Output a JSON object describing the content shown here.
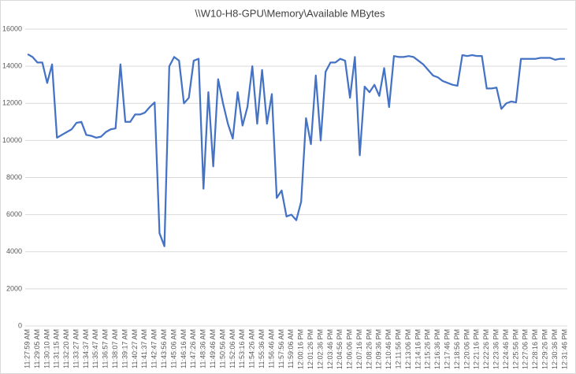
{
  "chart_data": {
    "type": "line",
    "title": "\\\\W10-H8-GPU\\Memory\\Available MBytes",
    "categories": [
      "11:27:59 AM",
      null,
      "11:29:05 AM",
      null,
      "11:30:10 AM",
      null,
      "11:31:15 AM",
      null,
      "11:32:20 AM",
      null,
      "11:33:27 AM",
      null,
      "11:34:37 AM",
      null,
      "11:35:47 AM",
      null,
      "11:36:57 AM",
      null,
      "11:38:07 AM",
      null,
      "11:39:17 AM",
      null,
      "11:40:27 AM",
      null,
      "11:41:37 AM",
      null,
      "11:42:47 AM",
      null,
      "11:43:56 AM",
      null,
      "11:45:06 AM",
      null,
      "11:46:16 AM",
      null,
      "11:47:26 AM",
      null,
      "11:48:36 AM",
      null,
      "11:49:46 AM",
      null,
      "11:50:56 AM",
      null,
      "11:52:06 AM",
      null,
      "11:53:16 AM",
      null,
      "11:54:26 AM",
      null,
      "11:55:36 AM",
      null,
      "11:56:46 AM",
      null,
      "11:57:56 AM",
      null,
      "11:59:06 AM",
      null,
      "12:00:16 PM",
      null,
      "12:01:26 PM",
      null,
      "12:02:36 PM",
      null,
      "12:03:46 PM",
      null,
      "12:04:56 PM",
      null,
      "12:06:06 PM",
      null,
      "12:07:16 PM",
      null,
      "12:08:26 PM",
      null,
      "12:09:36 PM",
      null,
      "12:10:46 PM",
      null,
      "12:11:56 PM",
      null,
      "12:13:06 PM",
      null,
      "12:14:16 PM",
      null,
      "12:15:26 PM",
      null,
      "12:16:36 PM",
      null,
      "12:17:46 PM",
      null,
      "12:18:56 PM",
      null,
      "12:20:06 PM",
      null,
      "12:21:16 PM",
      null,
      "12:22:26 PM",
      null,
      "12:23:36 PM",
      null,
      "12:24:46 PM",
      null,
      "12:25:56 PM",
      null,
      "12:27:06 PM",
      null,
      "12:28:16 PM",
      null,
      "12:29:26 PM",
      null,
      "12:30:36 PM",
      null,
      "12:31:46 PM"
    ],
    "values": [
      14650,
      14500,
      14200,
      14200,
      13100,
      14100,
      10150,
      10300,
      10450,
      10600,
      10950,
      11000,
      10300,
      10250,
      10150,
      10200,
      10450,
      10600,
      10650,
      14100,
      11000,
      11000,
      11400,
      11400,
      11500,
      11800,
      12050,
      5000,
      4300,
      14000,
      14500,
      14300,
      12000,
      12300,
      14300,
      14400,
      7400,
      12600,
      8600,
      13300,
      12000,
      10900,
      10100,
      12600,
      10800,
      11800,
      14000,
      10900,
      13800,
      10900,
      12500,
      6900,
      7300,
      5900,
      6000,
      5700,
      6700,
      11200,
      9800,
      13500,
      10000,
      13700,
      14200,
      14200,
      14400,
      14300,
      12300,
      14500,
      9200,
      12900,
      12600,
      13000,
      12400,
      13900,
      11800,
      14550,
      14500,
      14500,
      14550,
      14500,
      14300,
      14100,
      13800,
      13500,
      13400,
      13200,
      13100,
      13000,
      12950,
      14600,
      14550,
      14600,
      14550,
      14550,
      12800,
      12800,
      12850,
      11700,
      12000,
      12100,
      12050,
      14400,
      14400,
      14400,
      14400,
      14450,
      14450,
      14450,
      14350,
      14400,
      14400
    ],
    "color": "#4472c4",
    "ylim": [
      0,
      16000
    ],
    "yticks": [
      0,
      2000,
      4000,
      6000,
      8000,
      10000,
      12000,
      14000,
      16000
    ],
    "grid": true
  }
}
